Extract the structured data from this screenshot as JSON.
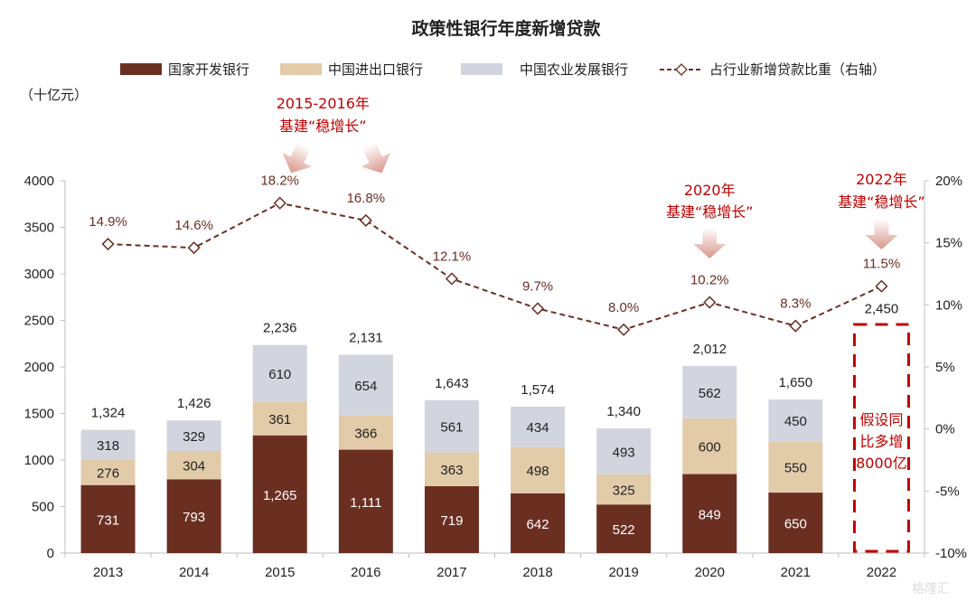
{
  "colors": {
    "cdb": "#6b2f22",
    "exim": "#e2cba9",
    "adbc": "#d3d5de",
    "ratio_line": "#6b2f22",
    "annotation": "#c00000",
    "axis": "#bfbfbf"
  },
  "chart_data": {
    "type": "bar",
    "stacked": true,
    "title": "政策性银行年度新增贷款",
    "ylabel": "（十亿元）",
    "categories": [
      "2013",
      "2014",
      "2015",
      "2016",
      "2017",
      "2018",
      "2019",
      "2020",
      "2021",
      "2022"
    ],
    "series": [
      {
        "name": "国家开发银行",
        "values": [
          731,
          793,
          1265,
          1111,
          719,
          642,
          522,
          849,
          650,
          null
        ],
        "labels": [
          "731",
          "793",
          "1,265",
          "1,111",
          "719",
          "642",
          "522",
          "849",
          "650",
          ""
        ]
      },
      {
        "name": "中国进出口银行",
        "values": [
          276,
          304,
          361,
          366,
          363,
          498,
          325,
          600,
          550,
          null
        ],
        "labels": [
          "276",
          "304",
          "361",
          "366",
          "363",
          "498",
          "325",
          "600",
          "550",
          ""
        ]
      },
      {
        "name": "中国农业发展银行",
        "values": [
          318,
          329,
          610,
          654,
          561,
          434,
          493,
          562,
          450,
          null
        ],
        "labels": [
          "318",
          "329",
          "610",
          "654",
          "561",
          "434",
          "493",
          "562",
          "450",
          ""
        ]
      }
    ],
    "totals": [
      1324,
      1426,
      2236,
      2131,
      1643,
      1574,
      1340,
      2012,
      1650,
      2450
    ],
    "total_labels": [
      "1,324",
      "1,426",
      "2,236",
      "2,131",
      "1,643",
      "1,574",
      "1,340",
      "2,012",
      "1,650",
      "2,450"
    ],
    "line_series": {
      "name": "占行业新增贷款比重（右轴）",
      "axis": "right",
      "values": [
        14.9,
        14.6,
        18.2,
        16.8,
        12.1,
        9.7,
        8.0,
        10.2,
        8.3,
        11.5
      ],
      "labels": [
        "14.9%",
        "14.6%",
        "18.2%",
        "16.8%",
        "12.1%",
        "9.7%",
        "8.0%",
        "10.2%",
        "8.3%",
        "11.5%"
      ]
    },
    "ylim": [
      0,
      4000
    ],
    "yticks": [
      0,
      500,
      1000,
      1500,
      2000,
      2500,
      3000,
      3500,
      4000
    ],
    "ytick_labels": [
      "0",
      "500",
      "1000",
      "1500",
      "2000",
      "2500",
      "3000",
      "3500",
      "4000"
    ],
    "y2lim": [
      -10,
      20
    ],
    "y2ticks": [
      -10,
      -5,
      0,
      5,
      10,
      15,
      20
    ],
    "y2tick_labels": [
      "-10%",
      "-5%",
      "0%",
      "5%",
      "10%",
      "15%",
      "20%"
    ],
    "grid": false,
    "legend": {
      "position": "top"
    },
    "annotations": [
      {
        "line1": "2015-2016年",
        "line2": "基建“稳增长”",
        "target": [
          "2015",
          "2016"
        ]
      },
      {
        "line1": "2020年",
        "line2": "基建“稳增长”",
        "target": [
          "2020"
        ]
      },
      {
        "line1": "2022年",
        "line2": "基建“稳增长”",
        "target": [
          "2022"
        ]
      }
    ],
    "box_2022": {
      "lines": [
        "假设同",
        "比多增",
        "8000亿"
      ]
    }
  },
  "watermark": "格隆汇"
}
